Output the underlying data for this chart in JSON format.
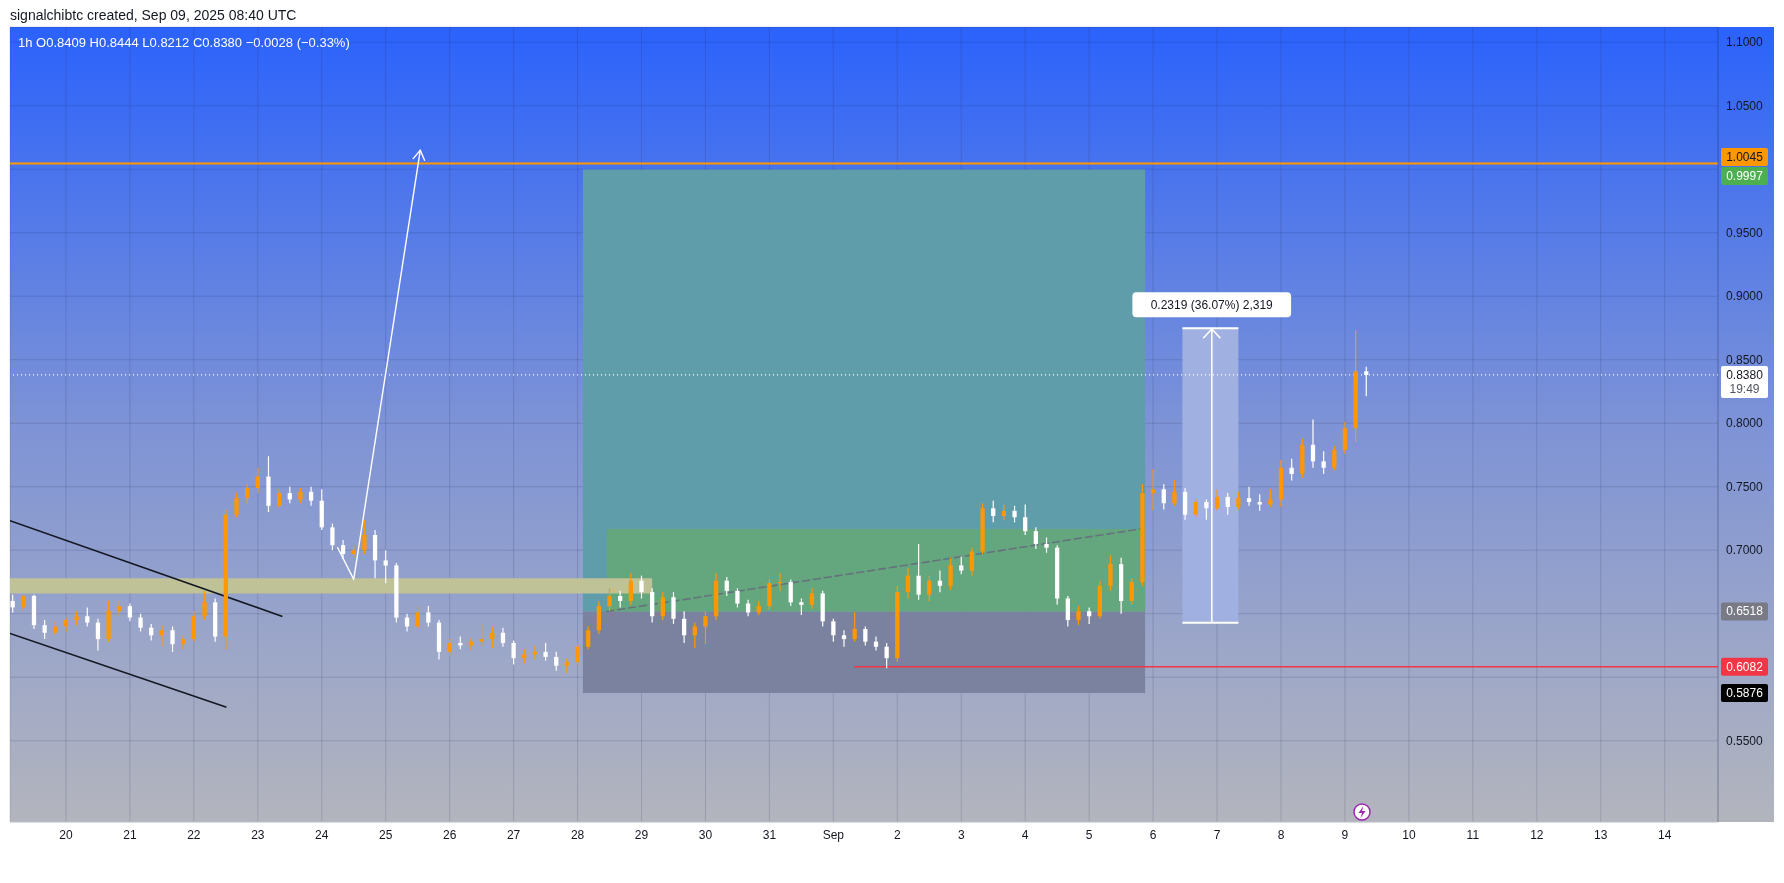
{
  "chart_data": {
    "type": "candlestick",
    "title": "1h O0.8409 H0.8444 L0.8212 C0.8380 −0.0028 (−0.33%)",
    "annotations": [
      "signalchibtc created, Sep 09, 2025 08:40 UTC",
      {
        "text": "0.2319 (36.07%) 2,319",
        "x": "2025-09-06T22:00",
        "y": 0.8748
      },
      "0.9997",
      {
        "text": "19:49",
        "x": "2025-09-14T20:00",
        "y": 0.838
      },
      "0.6518",
      {
        "text": "0.6082",
        "x": "2025-09-14T20:00",
        "y": 0.6082
      },
      "0.5876"
    ],
    "xlim": [
      "2025-08-19T03:00",
      "2025-09-14T20:00"
    ],
    "ylim": [
      0.486,
      1.112
    ],
    "xticks": [
      {
        "value": "2025-08-20",
        "label": "20"
      },
      {
        "value": "2025-08-21",
        "label": "21"
      },
      {
        "value": "2025-08-22",
        "label": "22"
      },
      {
        "value": "2025-08-23",
        "label": "23"
      },
      {
        "value": "2025-08-24",
        "label": "24"
      },
      {
        "value": "2025-08-25",
        "label": "25"
      },
      {
        "value": "2025-08-26",
        "label": "26"
      },
      {
        "value": "2025-08-27",
        "label": "27"
      },
      {
        "value": "2025-08-28",
        "label": "28"
      },
      {
        "value": "2025-08-29",
        "label": "29"
      },
      {
        "value": "2025-08-30",
        "label": "30"
      },
      {
        "value": "2025-08-31",
        "label": "31"
      },
      {
        "value": "2025-09-01",
        "label": "Sep"
      },
      {
        "value": "2025-09-02",
        "label": "2"
      },
      {
        "value": "2025-09-03",
        "label": "3"
      },
      {
        "value": "2025-09-04",
        "label": "4"
      },
      {
        "value": "2025-09-05",
        "label": "5"
      },
      {
        "value": "2025-09-06",
        "label": "6"
      },
      {
        "value": "2025-09-07",
        "label": "7"
      },
      {
        "value": "2025-09-08",
        "label": "8"
      },
      {
        "value": "2025-09-09",
        "label": "9"
      },
      {
        "value": "2025-09-10",
        "label": "10"
      },
      {
        "value": "2025-09-11",
        "label": "11"
      },
      {
        "value": "2025-09-12",
        "label": "12"
      },
      {
        "value": "2025-09-13",
        "label": "13"
      },
      {
        "value": "2025-09-14",
        "label": "14"
      }
    ],
    "yticks": [
      {
        "value": 0.55,
        "label": "0.5500"
      },
      {
        "value": 0.6,
        "label": null
      },
      {
        "value": 0.65,
        "label": null
      },
      {
        "value": 0.7,
        "label": "0.7000"
      },
      {
        "value": 0.75,
        "label": "0.7500"
      },
      {
        "value": 0.8,
        "label": "0.8000"
      },
      {
        "value": 0.85,
        "label": "0.8500"
      },
      {
        "value": 0.9,
        "label": "0.9000"
      },
      {
        "value": 0.95,
        "label": "0.9500"
      },
      {
        "value": 1.0,
        "label": null
      },
      {
        "value": 1.05,
        "label": "1.0500"
      },
      {
        "value": 1.1,
        "label": "1.1000"
      }
    ],
    "grid": true,
    "ref_lines": [
      {
        "axis": "y",
        "value": 1.0045,
        "label": "1.0045",
        "color": "#ff9800",
        "line_style": "solid"
      },
      {
        "axis": "y",
        "value": 0.838,
        "label": "0.8380",
        "color": "#ffffff",
        "line_style": "dotted"
      }
    ],
    "x": [
      "2025-08-19T04:00",
      "2025-08-19T08:00",
      "2025-08-19T12:00",
      "2025-08-19T16:00",
      "2025-08-19T20:00",
      "2025-08-20T00:00",
      "2025-08-20T04:00",
      "2025-08-20T08:00",
      "2025-08-20T12:00",
      "2025-08-20T16:00",
      "2025-08-20T20:00",
      "2025-08-21T00:00",
      "2025-08-21T04:00",
      "2025-08-21T08:00",
      "2025-08-21T12:00",
      "2025-08-21T16:00",
      "2025-08-21T20:00",
      "2025-08-22T00:00",
      "2025-08-22T04:00",
      "2025-08-22T08:00",
      "2025-08-22T12:00",
      "2025-08-22T16:00",
      "2025-08-22T20:00",
      "2025-08-23T00:00",
      "2025-08-23T04:00",
      "2025-08-23T08:00",
      "2025-08-23T12:00",
      "2025-08-23T16:00",
      "2025-08-23T20:00",
      "2025-08-24T00:00",
      "2025-08-24T04:00",
      "2025-08-24T08:00",
      "2025-08-24T12:00",
      "2025-08-24T16:00",
      "2025-08-24T20:00",
      "2025-08-25T00:00",
      "2025-08-25T04:00",
      "2025-08-25T08:00",
      "2025-08-25T12:00",
      "2025-08-25T16:00",
      "2025-08-25T20:00",
      "2025-08-26T00:00",
      "2025-08-26T04:00",
      "2025-08-26T08:00",
      "2025-08-26T12:00",
      "2025-08-26T16:00",
      "2025-08-26T20:00",
      "2025-08-27T00:00",
      "2025-08-27T04:00",
      "2025-08-27T08:00",
      "2025-08-27T12:00",
      "2025-08-27T16:00",
      "2025-08-27T20:00",
      "2025-08-28T00:00",
      "2025-08-28T04:00",
      "2025-08-28T08:00",
      "2025-08-28T12:00",
      "2025-08-28T16:00",
      "2025-08-28T20:00",
      "2025-08-29T00:00",
      "2025-08-29T04:00",
      "2025-08-29T08:00",
      "2025-08-29T12:00",
      "2025-08-29T16:00",
      "2025-08-29T20:00",
      "2025-08-30T00:00",
      "2025-08-30T04:00",
      "2025-08-30T08:00",
      "2025-08-30T12:00",
      "2025-08-30T16:00",
      "2025-08-30T20:00",
      "2025-08-31T00:00",
      "2025-08-31T04:00",
      "2025-08-31T08:00",
      "2025-08-31T12:00",
      "2025-08-31T16:00",
      "2025-08-31T20:00",
      "2025-09-01T00:00",
      "2025-09-01T04:00",
      "2025-09-01T08:00",
      "2025-09-01T12:00",
      "2025-09-01T16:00",
      "2025-09-01T20:00",
      "2025-09-02T00:00",
      "2025-09-02T04:00",
      "2025-09-02T08:00",
      "2025-09-02T12:00",
      "2025-09-02T16:00",
      "2025-09-02T20:00",
      "2025-09-03T00:00",
      "2025-09-03T04:00",
      "2025-09-03T08:00",
      "2025-09-03T12:00",
      "2025-09-03T16:00",
      "2025-09-03T20:00",
      "2025-09-04T00:00",
      "2025-09-04T04:00",
      "2025-09-04T08:00",
      "2025-09-04T12:00",
      "2025-09-04T16:00",
      "2025-09-04T20:00",
      "2025-09-05T00:00",
      "2025-09-05T04:00",
      "2025-09-05T08:00",
      "2025-09-05T12:00",
      "2025-09-05T16:00",
      "2025-09-05T20:00",
      "2025-09-06T00:00",
      "2025-09-06T04:00",
      "2025-09-06T08:00",
      "2025-09-06T12:00",
      "2025-09-06T16:00",
      "2025-09-06T20:00",
      "2025-09-07T00:00",
      "2025-09-07T04:00",
      "2025-09-07T08:00",
      "2025-09-07T12:00",
      "2025-09-07T16:00",
      "2025-09-07T20:00",
      "2025-09-08T00:00",
      "2025-09-08T04:00",
      "2025-09-08T08:00",
      "2025-09-08T12:00",
      "2025-09-08T16:00",
      "2025-09-08T20:00",
      "2025-09-09T00:00",
      "2025-09-09T04:00",
      "2025-09-09T08:00"
    ],
    "ohlc": [
      [
        0.66,
        0.665,
        0.651,
        0.655
      ],
      [
        0.655,
        0.665,
        0.652,
        0.664
      ],
      [
        0.664,
        0.665,
        0.638,
        0.641
      ],
      [
        0.641,
        0.645,
        0.63,
        0.635
      ],
      [
        0.635,
        0.644,
        0.633,
        0.64
      ],
      [
        0.64,
        0.647,
        0.636,
        0.645
      ],
      [
        0.645,
        0.652,
        0.641,
        0.648
      ],
      [
        0.648,
        0.655,
        0.64,
        0.643
      ],
      [
        0.643,
        0.646,
        0.621,
        0.63
      ],
      [
        0.63,
        0.66,
        0.628,
        0.652
      ],
      [
        0.652,
        0.66,
        0.648,
        0.656
      ],
      [
        0.656,
        0.658,
        0.644,
        0.647
      ],
      [
        0.647,
        0.65,
        0.636,
        0.639
      ],
      [
        0.639,
        0.642,
        0.629,
        0.633
      ],
      [
        0.633,
        0.641,
        0.624,
        0.637
      ],
      [
        0.637,
        0.64,
        0.62,
        0.626
      ],
      [
        0.626,
        0.633,
        0.622,
        0.63
      ],
      [
        0.63,
        0.652,
        0.628,
        0.648
      ],
      [
        0.648,
        0.668,
        0.645,
        0.659
      ],
      [
        0.659,
        0.662,
        0.628,
        0.632
      ],
      [
        0.632,
        0.732,
        0.622,
        0.728
      ],
      [
        0.728,
        0.745,
        0.726,
        0.741
      ],
      [
        0.741,
        0.752,
        0.737,
        0.749
      ],
      [
        0.749,
        0.765,
        0.745,
        0.758
      ],
      [
        0.758,
        0.774,
        0.73,
        0.735
      ],
      [
        0.735,
        0.748,
        0.733,
        0.745
      ],
      [
        0.745,
        0.75,
        0.737,
        0.74
      ],
      [
        0.74,
        0.749,
        0.737,
        0.746
      ],
      [
        0.746,
        0.75,
        0.735,
        0.739
      ],
      [
        0.739,
        0.748,
        0.716,
        0.718
      ],
      [
        0.718,
        0.721,
        0.7,
        0.704
      ],
      [
        0.704,
        0.708,
        0.693,
        0.697
      ],
      [
        0.697,
        0.703,
        0.694,
        0.7
      ],
      [
        0.7,
        0.724,
        0.697,
        0.712
      ],
      [
        0.712,
        0.716,
        0.678,
        0.692
      ],
      [
        0.692,
        0.7,
        0.674,
        0.688
      ],
      [
        0.688,
        0.69,
        0.643,
        0.647
      ],
      [
        0.647,
        0.65,
        0.636,
        0.64
      ],
      [
        0.64,
        0.655,
        0.638,
        0.651
      ],
      [
        0.651,
        0.656,
        0.64,
        0.643
      ],
      [
        0.643,
        0.645,
        0.614,
        0.62
      ],
      [
        0.62,
        0.63,
        0.617,
        0.627
      ],
      [
        0.627,
        0.632,
        0.622,
        0.625
      ],
      [
        0.625,
        0.631,
        0.621,
        0.628
      ],
      [
        0.628,
        0.642,
        0.624,
        0.63
      ],
      [
        0.63,
        0.64,
        0.623,
        0.635
      ],
      [
        0.635,
        0.639,
        0.624,
        0.627
      ],
      [
        0.627,
        0.629,
        0.61,
        0.615
      ],
      [
        0.615,
        0.622,
        0.611,
        0.618
      ],
      [
        0.618,
        0.625,
        0.614,
        0.62
      ],
      [
        0.62,
        0.627,
        0.613,
        0.616
      ],
      [
        0.616,
        0.62,
        0.605,
        0.609
      ],
      [
        0.609,
        0.615,
        0.603,
        0.612
      ],
      [
        0.612,
        0.626,
        0.61,
        0.624
      ],
      [
        0.624,
        0.64,
        0.622,
        0.637
      ],
      [
        0.637,
        0.66,
        0.634,
        0.656
      ],
      [
        0.656,
        0.67,
        0.652,
        0.664
      ],
      [
        0.664,
        0.668,
        0.655,
        0.66
      ],
      [
        0.66,
        0.682,
        0.657,
        0.676
      ],
      [
        0.676,
        0.68,
        0.662,
        0.667
      ],
      [
        0.667,
        0.67,
        0.643,
        0.648
      ],
      [
        0.648,
        0.667,
        0.645,
        0.663
      ],
      [
        0.663,
        0.667,
        0.642,
        0.646
      ],
      [
        0.646,
        0.652,
        0.627,
        0.633
      ],
      [
        0.633,
        0.643,
        0.623,
        0.64
      ],
      [
        0.64,
        0.652,
        0.626,
        0.648
      ],
      [
        0.648,
        0.682,
        0.645,
        0.676
      ],
      [
        0.676,
        0.679,
        0.664,
        0.668
      ],
      [
        0.668,
        0.67,
        0.655,
        0.658
      ],
      [
        0.658,
        0.661,
        0.648,
        0.651
      ],
      [
        0.651,
        0.66,
        0.649,
        0.656
      ],
      [
        0.656,
        0.677,
        0.653,
        0.674
      ],
      [
        0.674,
        0.682,
        0.668,
        0.675
      ],
      [
        0.675,
        0.677,
        0.656,
        0.659
      ],
      [
        0.659,
        0.662,
        0.649,
        0.657
      ],
      [
        0.657,
        0.67,
        0.654,
        0.666
      ],
      [
        0.666,
        0.668,
        0.64,
        0.644
      ],
      [
        0.644,
        0.646,
        0.628,
        0.633
      ],
      [
        0.633,
        0.637,
        0.624,
        0.63
      ],
      [
        0.63,
        0.651,
        0.628,
        0.638
      ],
      [
        0.638,
        0.64,
        0.625,
        0.628
      ],
      [
        0.628,
        0.632,
        0.621,
        0.624
      ],
      [
        0.624,
        0.627,
        0.607,
        0.615
      ],
      [
        0.615,
        0.672,
        0.612,
        0.667
      ],
      [
        0.667,
        0.686,
        0.662,
        0.68
      ],
      [
        0.68,
        0.705,
        0.661,
        0.665
      ],
      [
        0.665,
        0.68,
        0.66,
        0.676
      ],
      [
        0.676,
        0.684,
        0.667,
        0.672
      ],
      [
        0.672,
        0.694,
        0.669,
        0.688
      ],
      [
        0.688,
        0.695,
        0.681,
        0.684
      ],
      [
        0.684,
        0.702,
        0.68,
        0.699
      ],
      [
        0.699,
        0.737,
        0.697,
        0.733
      ],
      [
        0.733,
        0.739,
        0.722,
        0.727
      ],
      [
        0.727,
        0.736,
        0.724,
        0.731
      ],
      [
        0.731,
        0.735,
        0.722,
        0.726
      ],
      [
        0.726,
        0.736,
        0.712,
        0.715
      ],
      [
        0.715,
        0.718,
        0.701,
        0.705
      ],
      [
        0.705,
        0.71,
        0.698,
        0.702
      ],
      [
        0.702,
        0.704,
        0.657,
        0.662
      ],
      [
        0.662,
        0.664,
        0.64,
        0.645
      ],
      [
        0.645,
        0.656,
        0.641,
        0.652
      ],
      [
        0.652,
        0.655,
        0.642,
        0.648
      ],
      [
        0.648,
        0.676,
        0.646,
        0.672
      ],
      [
        0.672,
        0.696,
        0.668,
        0.689
      ],
      [
        0.689,
        0.694,
        0.65,
        0.66
      ],
      [
        0.66,
        0.678,
        0.657,
        0.675
      ],
      [
        0.675,
        0.752,
        0.672,
        0.745
      ],
      [
        0.745,
        0.764,
        0.731,
        0.748
      ],
      [
        0.748,
        0.752,
        0.732,
        0.737
      ],
      [
        0.737,
        0.755,
        0.735,
        0.746
      ],
      [
        0.746,
        0.749,
        0.724,
        0.728
      ],
      [
        0.728,
        0.741,
        0.726,
        0.738
      ],
      [
        0.738,
        0.74,
        0.724,
        0.733
      ],
      [
        0.733,
        0.748,
        0.731,
        0.742
      ],
      [
        0.742,
        0.745,
        0.728,
        0.734
      ],
      [
        0.734,
        0.746,
        0.732,
        0.741
      ],
      [
        0.741,
        0.75,
        0.735,
        0.738
      ],
      [
        0.738,
        0.744,
        0.731,
        0.736
      ],
      [
        0.736,
        0.748,
        0.734,
        0.74
      ],
      [
        0.74,
        0.771,
        0.734,
        0.765
      ],
      [
        0.765,
        0.772,
        0.755,
        0.76
      ],
      [
        0.76,
        0.788,
        0.757,
        0.783
      ],
      [
        0.783,
        0.803,
        0.765,
        0.77
      ],
      [
        0.77,
        0.778,
        0.76,
        0.765
      ],
      [
        0.765,
        0.782,
        0.763,
        0.779
      ],
      [
        0.779,
        0.801,
        0.776,
        0.796
      ],
      [
        0.796,
        0.873,
        0.785,
        0.8409
      ],
      [
        0.8409,
        0.8444,
        0.8212,
        0.838
      ]
    ],
    "colors": [
      "#ffffff",
      "#ff9800",
      "#ffffff",
      "#ffffff",
      "#ff9800",
      "#ff9800",
      "#ff9800",
      "#ffffff",
      "#ffffff",
      "#ff9800",
      "#ff9800",
      "#ffffff",
      "#ffffff",
      "#ffffff",
      "#ff9800",
      "#ffffff",
      "#ff9800",
      "#ff9800",
      "#ff9800",
      "#ffffff",
      "#ff9800",
      "#ff9800",
      "#ff9800",
      "#ff9800",
      "#ffffff",
      "#ff9800",
      "#ffffff",
      "#ff9800",
      "#ffffff",
      "#ffffff",
      "#ffffff",
      "#ffffff",
      "#ff9800",
      "#ff9800",
      "#ffffff",
      "#ffffff",
      "#ffffff",
      "#ffffff",
      "#ff9800",
      "#ffffff",
      "#ffffff",
      "#ff9800",
      "#ffffff",
      "#ff9800",
      "#ff9800",
      "#ff9800",
      "#ffffff",
      "#ffffff",
      "#ff9800",
      "#ff9800",
      "#ffffff",
      "#ffffff",
      "#ff9800",
      "#ff9800",
      "#ff9800",
      "#ff9800",
      "#ff9800",
      "#ffffff",
      "#ff9800",
      "#ffffff",
      "#ffffff",
      "#ff9800",
      "#ffffff",
      "#ffffff",
      "#ff9800",
      "#ff9800",
      "#ff9800",
      "#ffffff",
      "#ffffff",
      "#ffffff",
      "#ff9800",
      "#ff9800",
      "#ff9800",
      "#ffffff",
      "#ffffff",
      "#ff9800",
      "#ffffff",
      "#ffffff",
      "#ffffff",
      "#ff9800",
      "#ffffff",
      "#ffffff",
      "#ffffff",
      "#ff9800",
      "#ff9800",
      "#ffffff",
      "#ff9800",
      "#ffffff",
      "#ff9800",
      "#ffffff",
      "#ff9800",
      "#ff9800",
      "#ffffff",
      "#ff9800",
      "#ffffff",
      "#ffffff",
      "#ffffff",
      "#ffffff",
      "#ffffff",
      "#ffffff",
      "#ff9800",
      "#ffffff",
      "#ff9800",
      "#ff9800",
      "#ffffff",
      "#ff9800",
      "#ff9800",
      "#ff9800",
      "#ffffff",
      "#ff9800",
      "#ffffff",
      "#ff9800",
      "#ffffff",
      "#ff9800",
      "#ffffff",
      "#ff9800",
      "#ffffff",
      "#ffffff",
      "#ff9800",
      "#ff9800",
      "#ffffff",
      "#ff9800",
      "#ffffff",
      "#ffffff",
      "#ff9800",
      "#ff9800",
      "#ff9800",
      "#ffffff"
    ],
    "series": [
      {
        "type": "line",
        "x": [
          "2025-08-28T02:00",
          "2025-09-05T21:00"
        ],
        "values": [
          null,
          null
        ],
        "lower": [
          0.6518,
          0.6518
        ],
        "upper": [
          0.9997,
          0.9997
        ],
        "color": "#5f9dab"
      },
      {
        "type": "line",
        "x": [
          "2025-08-28T02:00",
          "2025-09-05T21:00"
        ],
        "values": [
          null,
          null
        ],
        "lower": [
          0.5876,
          0.5876
        ],
        "upper": [
          0.6518,
          0.6518
        ],
        "color": "#7b829f"
      },
      {
        "type": "line",
        "x": [
          "2025-08-28T11:00",
          "2025-09-05T21:00"
        ],
        "values": [
          null,
          null
        ],
        "lower": [
          0.6518,
          0.6518
        ],
        "upper": [
          0.7167,
          0.7167
        ],
        "color": "#64a77f"
      },
      {
        "type": "line",
        "x": [
          "2025-08-19T03:00",
          "2025-08-29T04:00"
        ],
        "values": [
          null,
          null
        ],
        "lower": [
          0.666,
          0.666
        ],
        "upper": [
          0.678,
          0.678
        ],
        "color": "#bfc196"
      },
      {
        "type": "line",
        "x": [
          "2025-09-06T11:00",
          "2025-09-07T08:00"
        ],
        "values": [
          null,
          null
        ],
        "lower": [
          0.6429,
          0.6429
        ],
        "upper": [
          0.8748,
          0.8748
        ],
        "color": "#a0b0e0"
      },
      {
        "type": "line",
        "line_style": "dashed",
        "x": [
          "2025-08-28T11:00",
          "2025-09-05T19:00"
        ],
        "values": [
          0.6518,
          0.7167
        ],
        "color": "#66717d"
      },
      {
        "type": "line",
        "x": [
          "2025-08-19T03:00",
          "2025-08-23T09:00"
        ],
        "values": [
          0.7233,
          0.6481
        ],
        "color": "#131722"
      },
      {
        "type": "line",
        "x": [
          "2025-08-19T03:00",
          "2025-08-22T12:00"
        ],
        "values": [
          0.6345,
          0.5766
        ],
        "color": "#131722"
      },
      {
        "type": "line",
        "x": [
          "2025-09-01T08:00",
          "2025-09-14T20:00"
        ],
        "values": [
          0.6082,
          0.6082
        ],
        "color": "#f23645"
      }
    ]
  }
}
